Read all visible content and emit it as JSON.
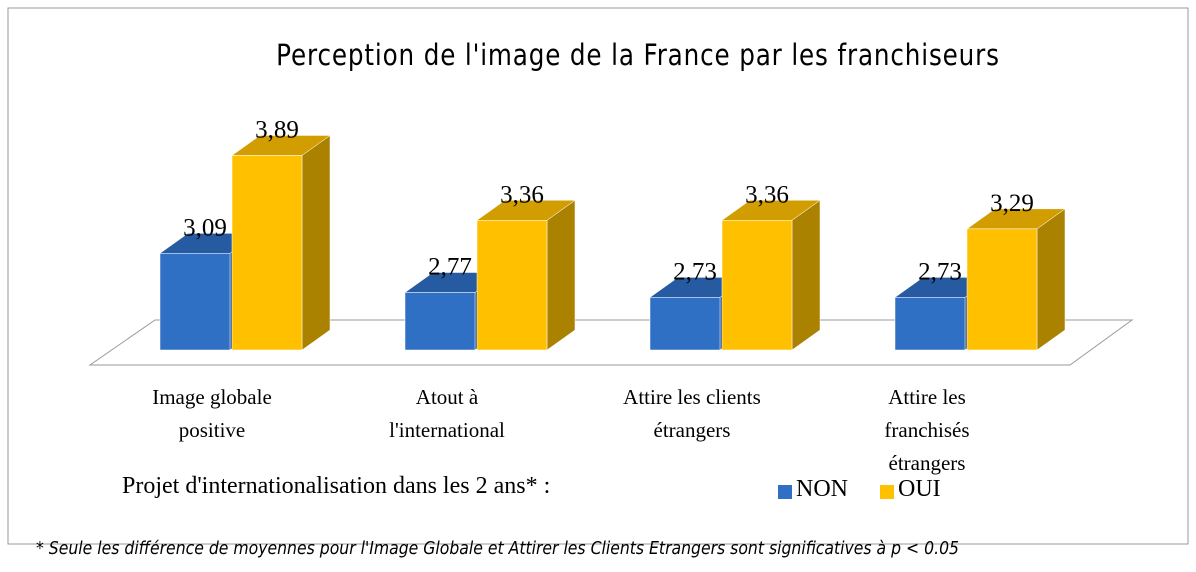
{
  "chart_data": {
    "type": "bar3d",
    "title": "Perception de l'image de la France par les franchiseurs",
    "categories": [
      "Image globale positive",
      "Atout à l'international",
      "Attire les clients étrangers",
      "Attire les franchisés étrangers"
    ],
    "legend_title": "Projet d'internationalisation dans les 2 ans* :",
    "series": [
      {
        "name": "NON",
        "color": "#2f6fc4",
        "values": [
          3.09,
          2.77,
          2.73,
          2.73
        ],
        "value_labels": [
          "3,09",
          "2,77",
          "2,73",
          "2,73"
        ]
      },
      {
        "name": "OUI",
        "color": "#ffc000",
        "values": [
          3.89,
          3.36,
          3.36,
          3.29
        ],
        "value_labels": [
          "3,89",
          "3,36",
          "3,36",
          "3,29"
        ]
      }
    ],
    "ylim": [
      2.3,
      4.0
    ],
    "note": "* Seule les différence de moyennes pour l'Image Globale et Attirer les Clients Etrangers sont significatives à p < 0.05"
  }
}
